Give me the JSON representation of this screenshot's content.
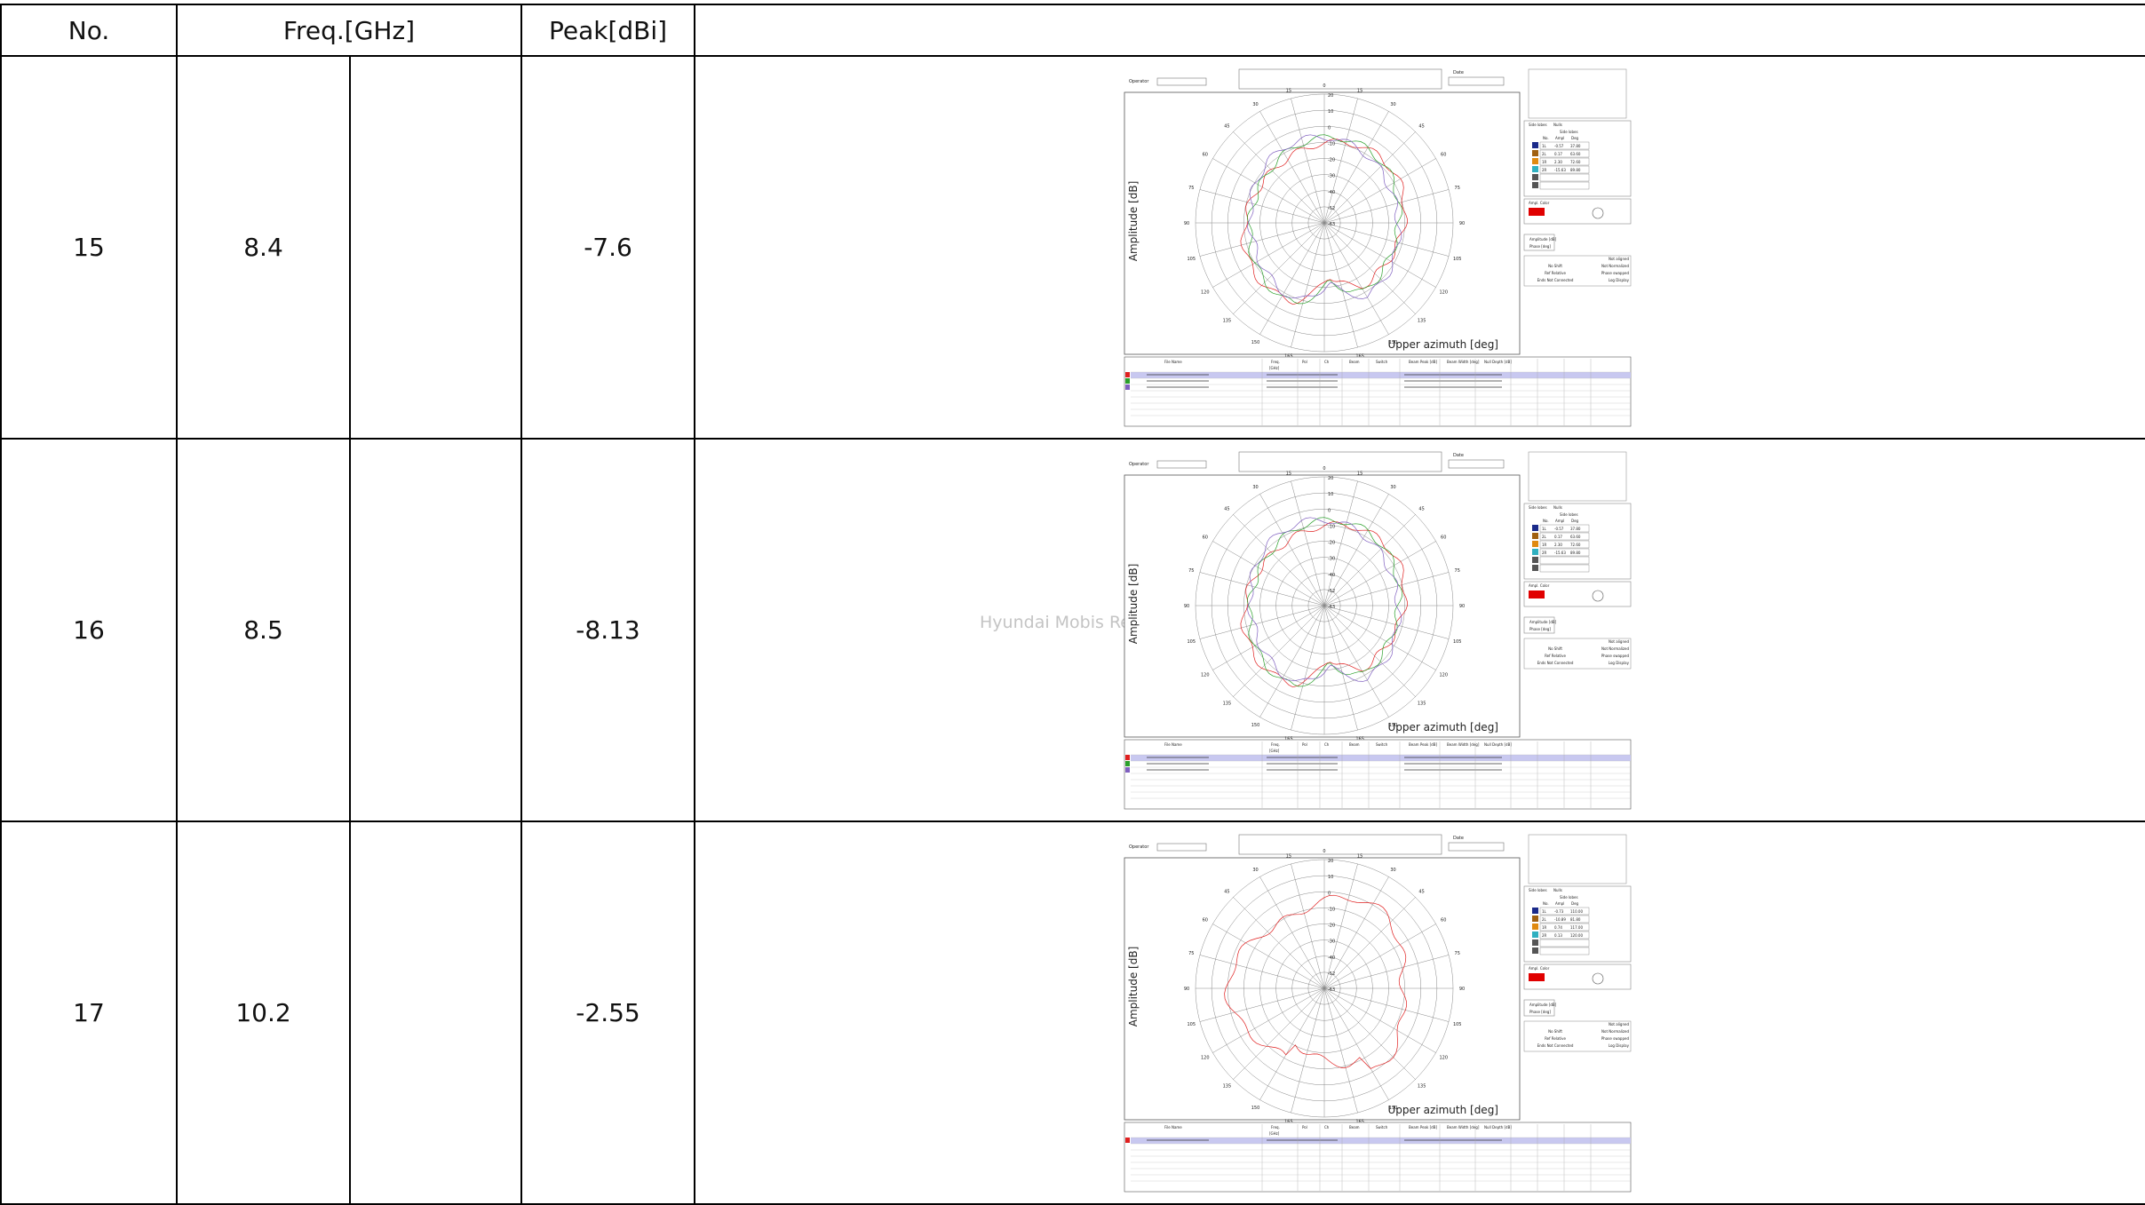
{
  "table": {
    "headers": {
      "no": "No.",
      "freq": "Freq.[GHz]",
      "peak": "Peak[dBi]"
    },
    "rows": [
      {
        "no": "15",
        "freq": "8.4",
        "peak": "-7.6",
        "watermark": "",
        "plot": {
          "traces": 3,
          "color": "multi",
          "legend": [
            {
              "id": "1L",
              "ampl": "-0.57",
              "deg": "37.80"
            },
            {
              "id": "2L",
              "ampl": "0.17",
              "deg": "63.60"
            },
            {
              "id": "1R",
              "ampl": "2.30",
              "deg": "72.60"
            },
            {
              "id": "2R",
              "ampl": "-15.63",
              "deg": "89.80"
            }
          ]
        }
      },
      {
        "no": "16",
        "freq": "8.5",
        "peak": "-8.13",
        "watermark": "Hyundai Mobis Re",
        "plot": {
          "traces": 3,
          "color": "multi",
          "legend": [
            {
              "id": "1L",
              "ampl": "-0.57",
              "deg": "37.80"
            },
            {
              "id": "2L",
              "ampl": "0.17",
              "deg": "63.60"
            },
            {
              "id": "1R",
              "ampl": "2.30",
              "deg": "72.60"
            },
            {
              "id": "2R",
              "ampl": "-15.63",
              "deg": "89.80"
            }
          ]
        }
      },
      {
        "no": "17",
        "freq": "10.2",
        "peak": "-2.55",
        "watermark": "",
        "plot": {
          "traces": 1,
          "color": "red",
          "legend": [
            {
              "id": "1L",
              "ampl": "-0.73",
              "deg": "110.00"
            },
            {
              "id": "2L",
              "ampl": "-10.89",
              "deg": "81.80"
            },
            {
              "id": "1R",
              "ampl": "0.74",
              "deg": "117.00"
            },
            {
              "id": "2R",
              "ampl": "0.13",
              "deg": "120.00"
            }
          ]
        }
      }
    ]
  },
  "plot_labels": {
    "y_axis": "Amplitude [dB]",
    "x_axis": "Upper azimuth  [deg]",
    "operator": "Operator",
    "date": "Date",
    "side_lobes": "Side lobes",
    "nulls": "Nulls",
    "no": "No.",
    "ampl": "Ampl",
    "deg": "Deg",
    "ampl_color": "Ampl. Color",
    "ampl_opt": "Amplitude [dB]",
    "phase_opt": "Phase [deg]",
    "file_name": "File Name",
    "freq": "Freq.",
    "ghz": "[GHz]",
    "pol": "Pol",
    "ch": "Ch",
    "beam": "Beam",
    "switch": "Switch",
    "beam_peak": "Beam Peak [dB]",
    "beam_width": "Beam Width [deg]",
    "null_depth": "Null Depth [dB]",
    "upper_labels": [
      "Not aligned",
      "Not Normalized",
      "Phase swapped",
      "Log Display"
    ],
    "lower_labels": [
      "No Shift",
      "Ref Relative",
      "Ends Not Connected"
    ]
  },
  "colors": {
    "trace1": "#e02020",
    "trace2": "#2aa02a",
    "trace3": "#8060c0",
    "sel_row": "#c8c8f0",
    "ampl_color": "#e00000"
  }
}
